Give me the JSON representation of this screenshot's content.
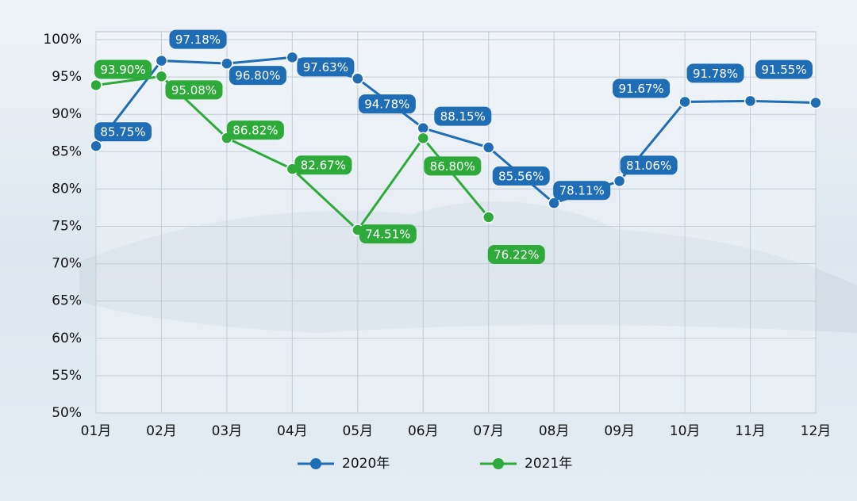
{
  "chart_data": {
    "type": "line",
    "categories": [
      "01月",
      "02月",
      "03月",
      "04月",
      "05月",
      "06月",
      "07月",
      "08月",
      "09月",
      "10月",
      "11月",
      "12月"
    ],
    "series": [
      {
        "name": "2020年",
        "color": "#1f6db5",
        "values": [
          85.75,
          97.18,
          96.8,
          97.63,
          94.78,
          88.15,
          85.56,
          78.11,
          81.06,
          91.67,
          91.78,
          91.55
        ],
        "value_labels": [
          "85.75%",
          "97.18%",
          "96.80%",
          "97.63%",
          "94.78%",
          "88.15%",
          "85.56%",
          "78.11%",
          "81.06%",
          "91.67%",
          "91.78%",
          "91.55%"
        ]
      },
      {
        "name": "2021年",
        "color": "#2eaa3a",
        "values": [
          93.9,
          95.08,
          86.82,
          82.67,
          74.51,
          86.8,
          76.22,
          null,
          null,
          null,
          null,
          null
        ],
        "value_labels": [
          "93.90%",
          "95.08%",
          "86.82%",
          "82.67%",
          "74.51%",
          "86.80%",
          "76.22%",
          null,
          null,
          null,
          null,
          null
        ]
      }
    ],
    "ylim": [
      50,
      100
    ],
    "yticks": [
      {
        "value": 50,
        "label": "50%"
      },
      {
        "value": 55,
        "label": "55%"
      },
      {
        "value": 60,
        "label": "60%"
      },
      {
        "value": 65,
        "label": "65%"
      },
      {
        "value": 70,
        "label": "70%"
      },
      {
        "value": 75,
        "label": "75%"
      },
      {
        "value": 80,
        "label": "80%"
      },
      {
        "value": 85,
        "label": "85%"
      },
      {
        "value": 90,
        "label": "90%"
      },
      {
        "value": 95,
        "label": "95%"
      },
      {
        "value": 100,
        "label": "100%"
      }
    ],
    "grid": true,
    "legend": "bottom"
  }
}
